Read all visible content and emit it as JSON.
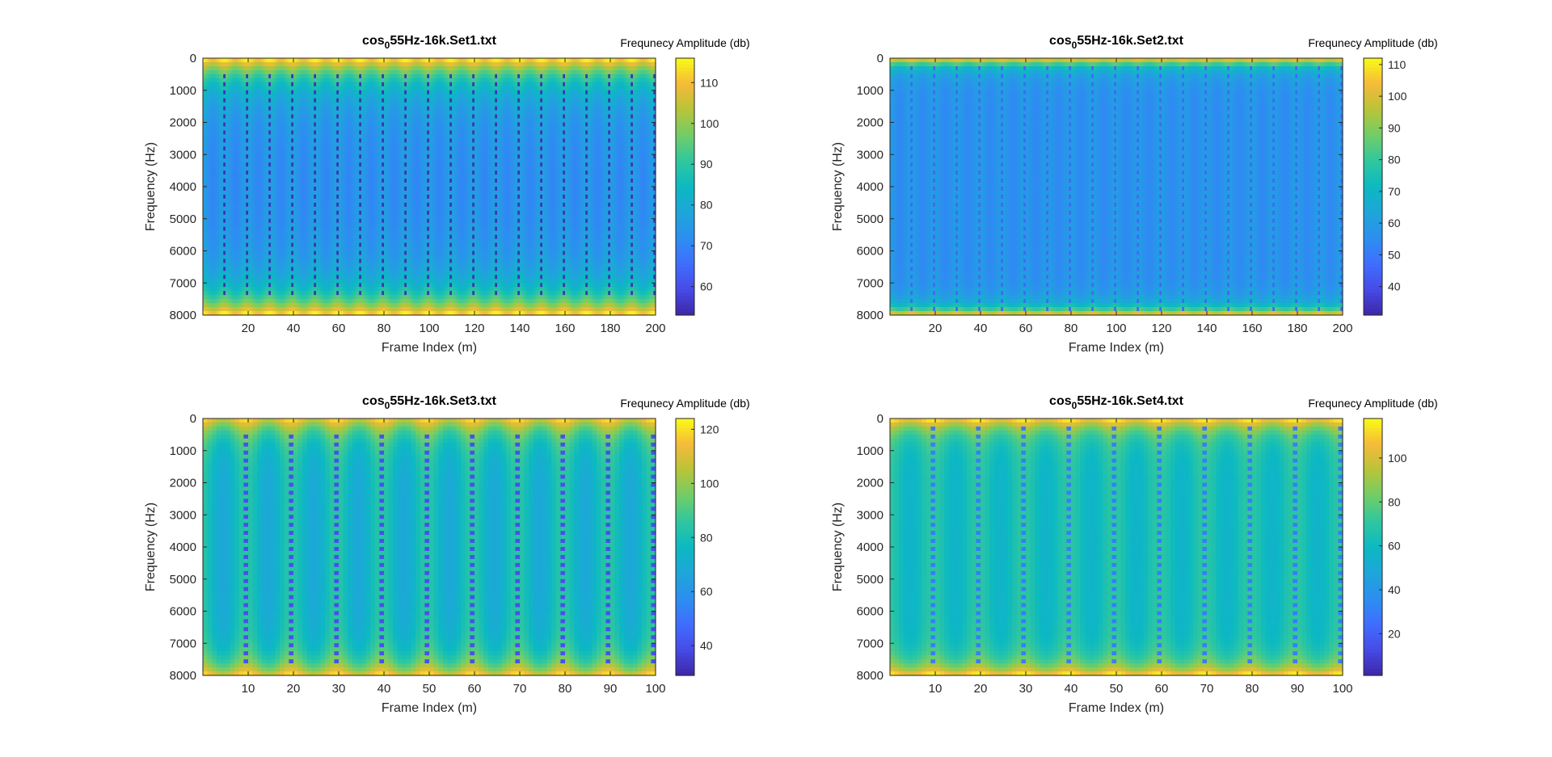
{
  "figure": {
    "background": "#ffffff"
  },
  "chart_data": [
    {
      "type": "heatmap",
      "title_prefix": "cos",
      "title_subscript": "0",
      "title_suffix": "55Hz-16k.Set1.txt",
      "xlabel": "Frame Index (m)",
      "ylabel": "Frequency (Hz)",
      "xlim": [
        0,
        200
      ],
      "ylim": [
        0,
        8000
      ],
      "y_reversed": true,
      "x_ticks": [
        20,
        40,
        60,
        80,
        100,
        120,
        140,
        160,
        180,
        200
      ],
      "y_ticks": [
        0,
        1000,
        2000,
        3000,
        4000,
        5000,
        6000,
        7000,
        8000
      ],
      "colorbar": {
        "label": "Frequnecy Amplitude (db)",
        "range": [
          53,
          116
        ],
        "ticks": [
          60,
          70,
          80,
          90,
          100,
          110
        ],
        "colormap": "parula"
      },
      "pattern": {
        "edge_value_db": 116,
        "edge_band_hz": 700,
        "center_value_db": 73,
        "vertical_stripe_period_frames": 10,
        "stripe_dip_db": 55,
        "modulation_depth_db": 3
      }
    },
    {
      "type": "heatmap",
      "title_prefix": "cos",
      "title_subscript": "0",
      "title_suffix": "55Hz-16k.Set2.txt",
      "xlabel": "Frame Index (m)",
      "ylabel": "Frequency (Hz)",
      "xlim": [
        0,
        200
      ],
      "ylim": [
        0,
        8000
      ],
      "y_reversed": true,
      "x_ticks": [
        20,
        40,
        60,
        80,
        100,
        120,
        140,
        160,
        180,
        200
      ],
      "y_ticks": [
        0,
        1000,
        2000,
        3000,
        4000,
        5000,
        6000,
        7000,
        8000
      ],
      "colorbar": {
        "label": "Frequnecy Amplitude (db)",
        "range": [
          31,
          112
        ],
        "ticks": [
          40,
          50,
          60,
          70,
          80,
          90,
          100,
          110
        ],
        "colormap": "parula"
      },
      "pattern": {
        "edge_value_db": 110,
        "edge_band_hz": 250,
        "center_value_db": 57,
        "vertical_stripe_period_frames": 10,
        "stripe_dip_db": 46,
        "modulation_depth_db": 3
      }
    },
    {
      "type": "heatmap",
      "title_prefix": "cos",
      "title_subscript": "0",
      "title_suffix": "55Hz-16k.Set3.txt",
      "xlabel": "Frame Index (m)",
      "ylabel": "Frequency (Hz)",
      "xlim": [
        0,
        100
      ],
      "ylim": [
        0,
        8000
      ],
      "y_reversed": true,
      "x_ticks": [
        10,
        20,
        30,
        40,
        50,
        60,
        70,
        80,
        90,
        100
      ],
      "y_ticks": [
        0,
        1000,
        2000,
        3000,
        4000,
        5000,
        6000,
        7000,
        8000
      ],
      "colorbar": {
        "label": "Frequnecy Amplitude (db)",
        "range": [
          29,
          124
        ],
        "ticks": [
          40,
          60,
          80,
          100,
          120
        ],
        "colormap": "parula"
      },
      "pattern": {
        "edge_value_db": 116,
        "edge_band_hz": 500,
        "center_value_db": 76,
        "vertical_stripe_period_frames": 10,
        "stripe_dip_db": 40,
        "modulation_depth_db": 8
      }
    },
    {
      "type": "heatmap",
      "title_prefix": "cos",
      "title_subscript": "0",
      "title_suffix": "55Hz-16k.Set4.txt",
      "xlabel": "Frame Index (m)",
      "ylabel": "Frequency (Hz)",
      "xlim": [
        0,
        100
      ],
      "ylim": [
        0,
        8000
      ],
      "y_reversed": true,
      "x_ticks": [
        10,
        20,
        30,
        40,
        50,
        60,
        70,
        80,
        90,
        100
      ],
      "y_ticks": [
        0,
        1000,
        2000,
        3000,
        4000,
        5000,
        6000,
        7000,
        8000
      ],
      "colorbar": {
        "label": "Frequnecy Amplitude (db)",
        "range": [
          1,
          118
        ],
        "ticks": [
          20,
          40,
          60,
          80,
          100
        ],
        "colormap": "parula"
      },
      "pattern": {
        "edge_value_db": 115,
        "edge_band_hz": 400,
        "center_value_db": 63,
        "vertical_stripe_period_frames": 10,
        "stripe_dip_db": 30,
        "modulation_depth_db": 7
      }
    }
  ]
}
